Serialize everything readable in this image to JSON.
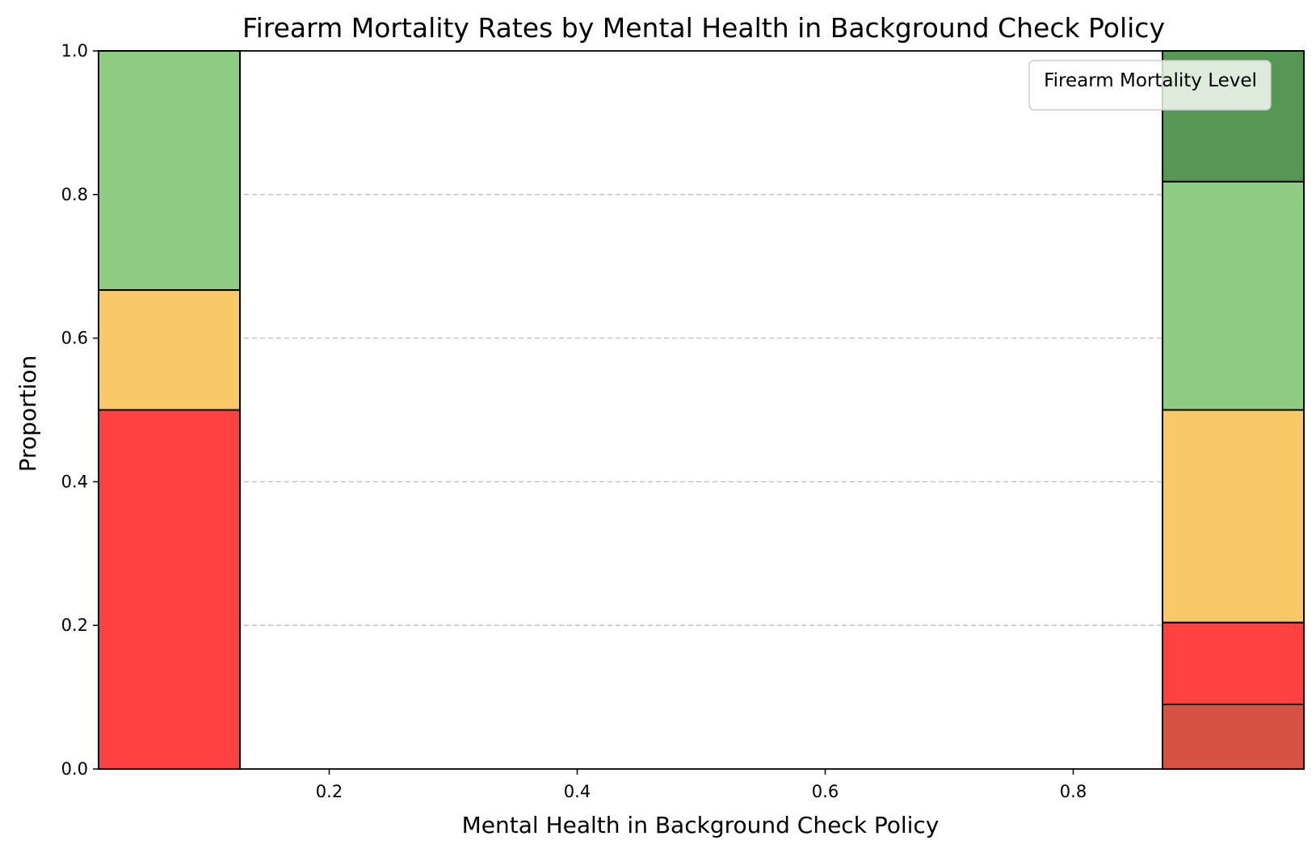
{
  "chart_data": {
    "type": "bar",
    "title": "Firearm Mortality Rates by Mental Health in Background Check Policy",
    "xlabel": "Mental Health in Background Check Policy",
    "ylabel": "Proportion",
    "xlim": [
      0.014,
      0.986
    ],
    "ylim": [
      0,
      1
    ],
    "xticks": [
      {
        "value": 0.2,
        "label": "0.2"
      },
      {
        "value": 0.4,
        "label": "0.4"
      },
      {
        "value": 0.6,
        "label": "0.6"
      },
      {
        "value": 0.8,
        "label": "0.8"
      }
    ],
    "yticks": [
      {
        "value": 0.0,
        "label": "0.0"
      },
      {
        "value": 0.2,
        "label": "0.2"
      },
      {
        "value": 0.4,
        "label": "0.4"
      },
      {
        "value": 0.6,
        "label": "0.6"
      },
      {
        "value": 0.8,
        "label": "0.8"
      },
      {
        "value": 1.0,
        "label": "1.0"
      }
    ],
    "grid": "y-dashed",
    "legend": {
      "title": "Firearm Mortality Level",
      "placement": "top-right",
      "entries": []
    },
    "bins": [
      {
        "x_start": 0.014,
        "x_end": 0.128,
        "segments": [
          {
            "bottom": 0.0,
            "top": 0.5,
            "color": "#ff4141"
          },
          {
            "bottom": 0.5,
            "top": 0.667,
            "color": "#fac967"
          },
          {
            "bottom": 0.667,
            "top": 1.0,
            "color": "#8fcc83"
          }
        ]
      },
      {
        "x_start": 0.872,
        "x_end": 0.986,
        "segments": [
          {
            "bottom": 0.0,
            "top": 0.09,
            "color": "#d65343"
          },
          {
            "bottom": 0.09,
            "top": 0.204,
            "color": "#ff4141"
          },
          {
            "bottom": 0.204,
            "top": 0.5,
            "color": "#fac967"
          },
          {
            "bottom": 0.5,
            "top": 0.818,
            "color": "#8fcc83"
          },
          {
            "bottom": 0.818,
            "top": 1.0,
            "color": "#559753"
          }
        ]
      }
    ]
  }
}
